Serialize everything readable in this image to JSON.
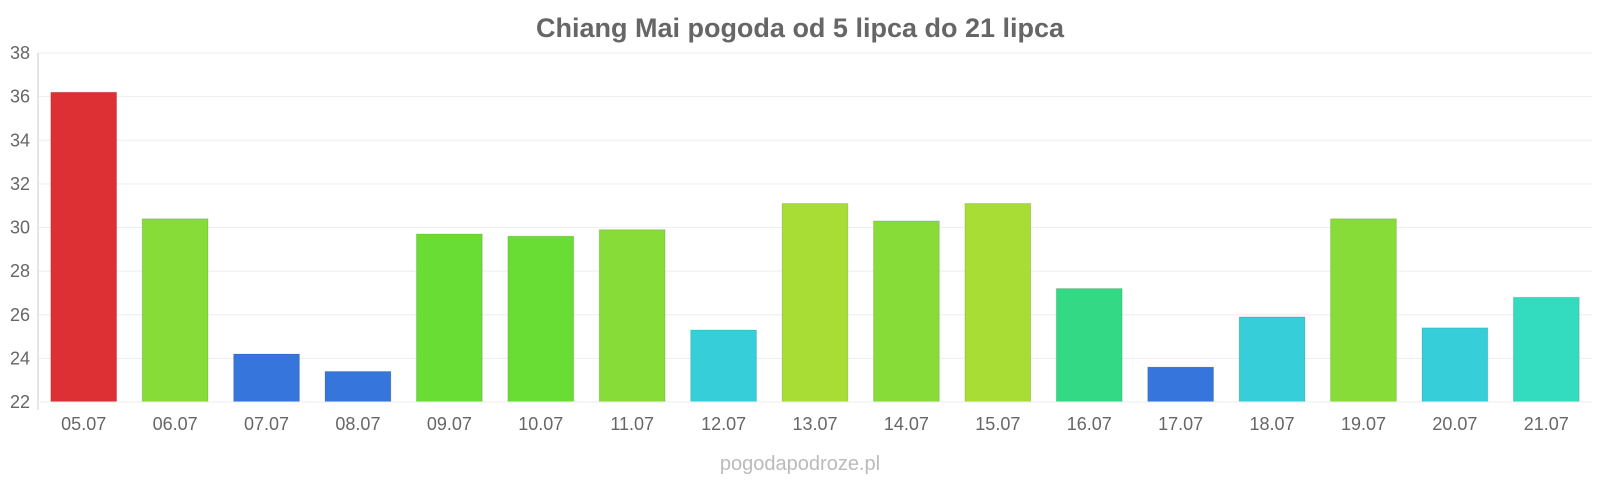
{
  "chart_data": {
    "type": "bar",
    "title": "Chiang Mai pogoda od 5 lipca do 21 lipca",
    "xlabel": "",
    "ylabel": "",
    "ylim": [
      22,
      38
    ],
    "yticks": [
      "22",
      "24",
      "26",
      "28",
      "30",
      "32",
      "34",
      "36",
      "38"
    ],
    "grid": true,
    "categories": [
      "05.07",
      "06.07",
      "07.07",
      "08.07",
      "09.07",
      "10.07",
      "11.07",
      "12.07",
      "13.07",
      "14.07",
      "15.07",
      "16.07",
      "17.07",
      "18.07",
      "19.07",
      "20.07",
      "21.07"
    ],
    "values": [
      36.2,
      30.4,
      24.2,
      23.4,
      29.7,
      29.6,
      29.9,
      25.3,
      31.1,
      30.3,
      31.1,
      27.2,
      23.6,
      25.9,
      30.4,
      25.4,
      26.8
    ],
    "colors": [
      "#dc3035",
      "#87dc37",
      "#3575dc",
      "#3575dc",
      "#6add35",
      "#6add35",
      "#87dc37",
      "#36cfd9",
      "#a8dd35",
      "#87dc37",
      "#a8dd35",
      "#33d985",
      "#3575dc",
      "#36cfd9",
      "#87dc37",
      "#36cfd9",
      "#33dcbf"
    ]
  },
  "watermark": "pogodapodroze.pl"
}
